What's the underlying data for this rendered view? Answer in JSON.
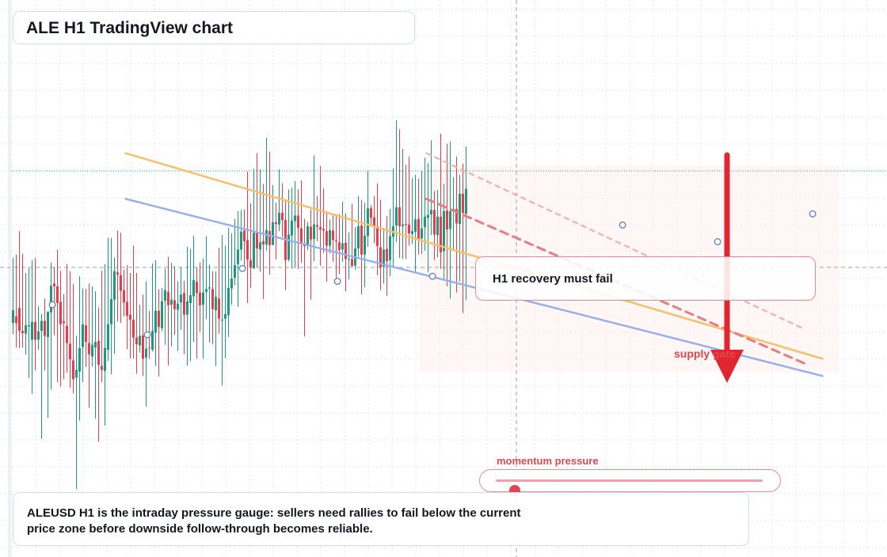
{
  "title": "ALE H1 TradingView chart",
  "callout": "H1 recovery must fail",
  "zone_label": "supply gate",
  "gauge": {
    "label": "momentum pressure",
    "level": 0.07
  },
  "note": {
    "line1": "ALEUSD H1 is the intraday pressure gauge: sellers need rallies to fail below the current",
    "line2": "price zone before downside follow-through becomes reliable."
  },
  "colors": {
    "up": "#1b9a80",
    "down": "#ea3b4c",
    "accent": "#e0464e",
    "orange_line": "#f8bf6a",
    "blue_line": "#96afee",
    "grid": "#dfe4ec"
  },
  "chart_data": {
    "type": "candlestick",
    "title": "ALE H1 TradingView chart",
    "ylim": [
      0,
      100
    ],
    "candles": [
      [
        42.0,
        44.3,
        53.7,
        40.0
      ],
      [
        43.2,
        42.0,
        54.3,
        37.6
      ],
      [
        44.7,
        40.6,
        58.5,
        37.5
      ],
      [
        40.6,
        40.2,
        54.4,
        37.6
      ],
      [
        40.1,
        41.6,
        51.0,
        36.3
      ],
      [
        41.4,
        41.6,
        51.9,
        32.1
      ],
      [
        39.0,
        42.2,
        53.3,
        29.3
      ],
      [
        42.2,
        39.0,
        53.7,
        33.5
      ],
      [
        39.0,
        40.5,
        45.0,
        37.2
      ],
      [
        40.6,
        42.4,
        43.6,
        21.2
      ],
      [
        42.4,
        39.7,
        46.4,
        33.5
      ],
      [
        39.5,
        44.0,
        44.1,
        25.0
      ],
      [
        43.9,
        48.7,
        52.9,
        30.0
      ],
      [
        49.1,
        48.6,
        52.1,
        39.8
      ],
      [
        48.6,
        45.6,
        55.2,
        31.4
      ],
      [
        45.8,
        41.8,
        51.4,
        30.6
      ],
      [
        42.3,
        42.0,
        47.2,
        31.9
      ],
      [
        41.5,
        38.4,
        52.6,
        33.1
      ],
      [
        38.3,
        35.5,
        51.3,
        30.4
      ],
      [
        35.3,
        31.9,
        49.0,
        29.4
      ],
      [
        32.2,
        33.6,
        39.7,
        12.2
      ],
      [
        33.3,
        37.5,
        50.4,
        24.5
      ],
      [
        37.7,
        41.8,
        48.2,
        31.4
      ],
      [
        41.6,
        38.6,
        48.1,
        34.1
      ],
      [
        38.4,
        36.4,
        49.1,
        26.8
      ],
      [
        36.0,
        38.1,
        48.6,
        34.2
      ],
      [
        37.6,
        38.6,
        47.7,
        24.8
      ],
      [
        38.8,
        34.5,
        44.8,
        20.7
      ],
      [
        34.3,
        33.6,
        51.4,
        31.4
      ],
      [
        33.4,
        37.5,
        52.6,
        23.6
      ],
      [
        37.2,
        41.8,
        57.3,
        35.2
      ],
      [
        41.8,
        46.3,
        57.3,
        32.8
      ],
      [
        46.2,
        51.3,
        53.8,
        36.5
      ],
      [
        51.1,
        50.7,
        58.6,
        42.3
      ],
      [
        50.6,
        47.8,
        58.2,
        42.0
      ],
      [
        47.9,
        45.7,
        51.6,
        43.2
      ],
      [
        45.8,
        43.3,
        52.4,
        37.3
      ],
      [
        43.5,
        42.6,
        51.0,
        35.6
      ],
      [
        42.6,
        39.4,
        55.9,
        35.6
      ],
      [
        39.4,
        38.2,
        51.0,
        32.9
      ],
      [
        38.0,
        39.7,
        45.3,
        36.7
      ],
      [
        39.8,
        35.6,
        47.1,
        32.5
      ],
      [
        35.8,
        37.4,
        49.5,
        27.0
      ],
      [
        37.6,
        37.5,
        44.2,
        35.6
      ],
      [
        37.2,
        40.6,
        52.7,
        36.9
      ],
      [
        40.3,
        44.2,
        53.3,
        34.3
      ],
      [
        44.2,
        41.3,
        48.1,
        32.4
      ],
      [
        41.1,
        45.9,
        48.3,
        40.5
      ],
      [
        46.0,
        47.9,
        51.8,
        38.1
      ],
      [
        47.6,
        45.2,
        53.9,
        34.4
      ],
      [
        45.3,
        46.2,
        52.8,
        37.8
      ],
      [
        46.1,
        44.5,
        52.2,
        39.9
      ],
      [
        44.4,
        45.5,
        49.5,
        37.0
      ],
      [
        45.7,
        47.1,
        52.0,
        40.8
      ],
      [
        47.4,
        43.5,
        49.6,
        36.4
      ],
      [
        43.5,
        45.9,
        55.7,
        34.4
      ],
      [
        45.6,
        47.0,
        55.3,
        35.2
      ],
      [
        46.8,
        49.7,
        57.7,
        38.6
      ],
      [
        49.4,
        47.4,
        52.0,
        35.6
      ],
      [
        47.5,
        45.2,
        52.9,
        40.4
      ],
      [
        45.3,
        47.5,
        53.6,
        35.6
      ],
      [
        47.6,
        48.1,
        57.6,
        42.7
      ],
      [
        48.2,
        48.4,
        52.5,
        38.5
      ],
      [
        48.1,
        44.5,
        51.3,
        38.2
      ],
      [
        44.3,
        46.7,
        51.3,
        34.3
      ],
      [
        46.4,
        42.8,
        55.5,
        40.1
      ],
      [
        42.6,
        42.6,
        57.8,
        30.8
      ],
      [
        42.8,
        43.6,
        55.9,
        35.7
      ],
      [
        43.4,
        48.3,
        59.1,
        39.5
      ],
      [
        48.2,
        50.0,
        58.1,
        45.3
      ],
      [
        50.1,
        52.4,
        60.7,
        48.8
      ],
      [
        52.6,
        55.2,
        62.1,
        44.9
      ],
      [
        55.2,
        58.4,
        62.3,
        53.2
      ],
      [
        58.6,
        56.7,
        62.4,
        52.2
      ],
      [
        56.9,
        53.4,
        69.2,
        45.6
      ],
      [
        53.3,
        52.0,
        63.5,
        48.3
      ],
      [
        51.8,
        58.2,
        69.7,
        52.7
      ],
      [
        58.2,
        55.4,
        72.5,
        52.0
      ],
      [
        55.2,
        56.5,
        69.6,
        51.2
      ],
      [
        56.7,
        56.1,
        67.0,
        46.3
      ],
      [
        56.1,
        58.7,
        75.3,
        55.0
      ],
      [
        58.5,
        56.0,
        72.8,
        50.7
      ],
      [
        56.0,
        60.1,
        66.8,
        58.3
      ],
      [
        60.1,
        59.8,
        63.6,
        53.4
      ],
      [
        59.7,
        61.8,
        69.6,
        58.5
      ],
      [
        61.8,
        60.5,
        67.1,
        57.4
      ],
      [
        60.5,
        53.3,
        64.1,
        47.9
      ],
      [
        53.4,
        57.9,
        66.0,
        53.1
      ],
      [
        57.7,
        60.4,
        66.3,
        51.8
      ],
      [
        60.3,
        61.3,
        67.5,
        52.1
      ],
      [
        61.3,
        59.1,
        66.0,
        51.7
      ],
      [
        59.0,
        56.2,
        67.6,
        52.8
      ],
      [
        56.3,
        55.8,
        60.7,
        39.6
      ],
      [
        55.8,
        59.4,
        60.2,
        55.1
      ],
      [
        59.3,
        57.0,
        62.4,
        46.2
      ],
      [
        57.1,
        59.7,
        72.1,
        53.1
      ],
      [
        59.6,
        59.3,
        64.8,
        56.7
      ],
      [
        59.2,
        58.8,
        70.2,
        52.3
      ],
      [
        58.9,
        58.6,
        66.2,
        54.6
      ],
      [
        58.5,
        55.9,
        62.1,
        49.4
      ],
      [
        55.9,
        58.7,
        60.6,
        54.5
      ],
      [
        58.6,
        56.9,
        61.3,
        53.0
      ],
      [
        56.9,
        56.7,
        61.4,
        48.9
      ],
      [
        56.5,
        55.1,
        61.6,
        50.8
      ],
      [
        55.2,
        56.3,
        63.8,
        53.0
      ],
      [
        56.4,
        53.5,
        61.7,
        47.7
      ],
      [
        53.5,
        53.5,
        58.3,
        49.8
      ],
      [
        53.5,
        52.2,
        63.4,
        52.2
      ],
      [
        52.3,
        55.4,
        59.2,
        51.6
      ],
      [
        55.4,
        59.4,
        64.8,
        53.9
      ],
      [
        59.5,
        54.3,
        64.1,
        47.1
      ],
      [
        54.3,
        57.7,
        63.6,
        48.4
      ],
      [
        57.6,
        62.6,
        69.4,
        55.7
      ],
      [
        62.6,
        60.9,
        63.2,
        59.3
      ],
      [
        61.0,
        59.4,
        64.8,
        56.3
      ],
      [
        59.4,
        55.8,
        67.1,
        50.6
      ],
      [
        55.6,
        52.0,
        64.1,
        47.9
      ],
      [
        52.1,
        55.2,
        59.1,
        49.1
      ],
      [
        55.3,
        53.1,
        61.2,
        46.9
      ],
      [
        53.3,
        57.6,
        62.5,
        50.4
      ],
      [
        57.5,
        59.4,
        69.8,
        52.1
      ],
      [
        59.5,
        62.8,
        78.4,
        56.5
      ],
      [
        62.8,
        59.4,
        76.8,
        53.7
      ],
      [
        59.4,
        59.7,
        73.3,
        53.5
      ],
      [
        59.8,
        59.7,
        70.4,
        53.5
      ],
      [
        59.7,
        58.1,
        71.9,
        55.9
      ],
      [
        58.0,
        58.5,
        68.0,
        56.2
      ],
      [
        58.4,
        60.6,
        68.6,
        51.2
      ],
      [
        60.7,
        57.1,
        67.9,
        54.3
      ],
      [
        57.2,
        59.0,
        69.3,
        54.4
      ],
      [
        59.2,
        61.1,
        71.7,
        55.0
      ],
      [
        60.9,
        61.4,
        70.7,
        51.1
      ],
      [
        61.5,
        62.3,
        74.8,
        57.8
      ],
      [
        62.3,
        57.9,
        65.7,
        53.3
      ],
      [
        57.8,
        61.1,
        65.9,
        53.8
      ],
      [
        61.1,
        54.7,
        76.0,
        51.7
      ],
      [
        54.9,
        62.1,
        67.0,
        49.7
      ],
      [
        62.2,
        58.8,
        74.2,
        48.6
      ],
      [
        58.9,
        62.1,
        74.6,
        46.4
      ],
      [
        62.3,
        62.5,
        68.2,
        54.9
      ],
      [
        62.5,
        59.9,
        71.9,
        47.5
      ],
      [
        59.8,
        65.2,
        68.6,
        49.5
      ],
      [
        65.2,
        61.8,
        70.6,
        43.8
      ],
      [
        61.6,
        66.1,
        73.7,
        46.1
      ]
    ],
    "overlays": [
      {
        "type": "trendline",
        "x": [
          35.5,
          255.5
        ],
        "y": [
          72.5,
          35.6
        ]
      },
      {
        "type": "trendline",
        "x": [
          35.5,
          255.5
        ],
        "y": [
          64.3,
          32.5
        ]
      },
      {
        "type": "trendline",
        "x": [
          130.5,
          249.5
        ],
        "y": [
          72.5,
          41.0
        ]
      },
      {
        "type": "trendline",
        "x": [
          130.5,
          250.5
        ],
        "y": [
          64.3,
          34.6
        ]
      }
    ],
    "markers": [
      {
        "x": 12.4,
        "y": 45.3
      },
      {
        "x": 42.4,
        "y": 39.9
      },
      {
        "x": 72.4,
        "y": 51.8
      },
      {
        "x": 102.4,
        "y": 49.5
      },
      {
        "x": 132.4,
        "y": 50.4
      },
      {
        "x": 162.4,
        "y": 51.0
      },
      {
        "x": 192.4,
        "y": 59.6
      },
      {
        "x": 222.4,
        "y": 56.6
      },
      {
        "x": 252.4,
        "y": 61.6
      }
    ]
  }
}
